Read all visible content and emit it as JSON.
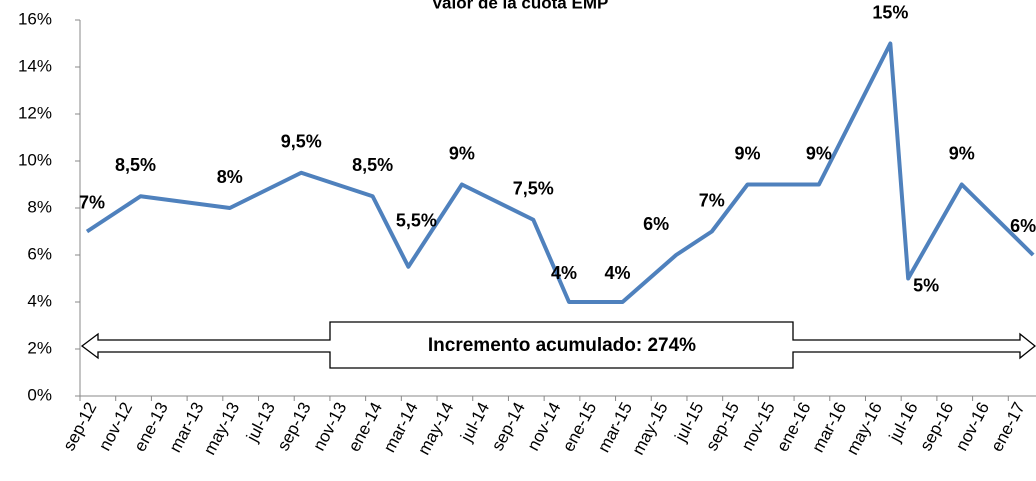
{
  "chart_data": {
    "type": "line",
    "title": "Valor de la cuota EMP",
    "x": [
      "2012-09",
      "2012-12",
      "2013-05",
      "2013-09",
      "2014-01",
      "2014-03",
      "2014-06",
      "2014-10",
      "2014-12",
      "2015-03",
      "2015-06",
      "2015-08",
      "2015-10",
      "2016-02",
      "2016-06",
      "2016-07",
      "2016-10",
      "2017-02"
    ],
    "series": [
      {
        "color": "#4f81bd",
        "values": [
          7,
          8.5,
          8,
          9.5,
          8.5,
          5.5,
          9,
          7.5,
          4,
          4,
          6,
          7,
          9,
          9,
          15,
          5,
          9,
          6
        ],
        "value_labels": [
          "7%",
          "8,5%",
          "8%",
          "9,5%",
          "8,5%",
          "5,5%",
          "9%",
          "7,5%",
          "4%",
          "4%",
          "6%",
          "7%",
          "9%",
          "9%",
          "15%",
          "5%",
          "9%",
          "6%"
        ]
      }
    ],
    "xlim": [
      "2012-09",
      "2017-03"
    ],
    "xticks": [
      {
        "value": "2012-09",
        "label": "sep-12"
      },
      {
        "value": "2012-11",
        "label": "nov-12"
      },
      {
        "value": "2013-01",
        "label": "ene-13"
      },
      {
        "value": "2013-03",
        "label": "mar-13"
      },
      {
        "value": "2013-05",
        "label": "may-13"
      },
      {
        "value": "2013-07",
        "label": "jul-13"
      },
      {
        "value": "2013-09",
        "label": "sep-13"
      },
      {
        "value": "2013-11",
        "label": "nov-13"
      },
      {
        "value": "2014-01",
        "label": "ene-14"
      },
      {
        "value": "2014-03",
        "label": "mar-14"
      },
      {
        "value": "2014-05",
        "label": "may-14"
      },
      {
        "value": "2014-07",
        "label": "jul-14"
      },
      {
        "value": "2014-09",
        "label": "sep-14"
      },
      {
        "value": "2014-11",
        "label": "nov-14"
      },
      {
        "value": "2015-01",
        "label": "ene-15"
      },
      {
        "value": "2015-03",
        "label": "mar-15"
      },
      {
        "value": "2015-05",
        "label": "may-15"
      },
      {
        "value": "2015-07",
        "label": "jul-15"
      },
      {
        "value": "2015-09",
        "label": "sep-15"
      },
      {
        "value": "2015-11",
        "label": "nov-15"
      },
      {
        "value": "2016-01",
        "label": "ene-16"
      },
      {
        "value": "2016-03",
        "label": "mar-16"
      },
      {
        "value": "2016-05",
        "label": "may-16"
      },
      {
        "value": "2016-07",
        "label": "jul-16"
      },
      {
        "value": "2016-09",
        "label": "sep-16"
      },
      {
        "value": "2016-11",
        "label": "nov-16"
      },
      {
        "value": "2017-01",
        "label": "ene-17"
      }
    ],
    "ylim": [
      0,
      16
    ],
    "yticks": [
      {
        "value": 0,
        "label": "0%"
      },
      {
        "value": 2,
        "label": "2%"
      },
      {
        "value": 4,
        "label": "4%"
      },
      {
        "value": 6,
        "label": "6%"
      },
      {
        "value": 8,
        "label": "8%"
      },
      {
        "value": 10,
        "label": "10%"
      },
      {
        "value": 12,
        "label": "12%"
      },
      {
        "value": 14,
        "label": "14%"
      },
      {
        "value": 16,
        "label": "16%"
      }
    ],
    "annotation": "Incremento acumulado: 274%"
  }
}
